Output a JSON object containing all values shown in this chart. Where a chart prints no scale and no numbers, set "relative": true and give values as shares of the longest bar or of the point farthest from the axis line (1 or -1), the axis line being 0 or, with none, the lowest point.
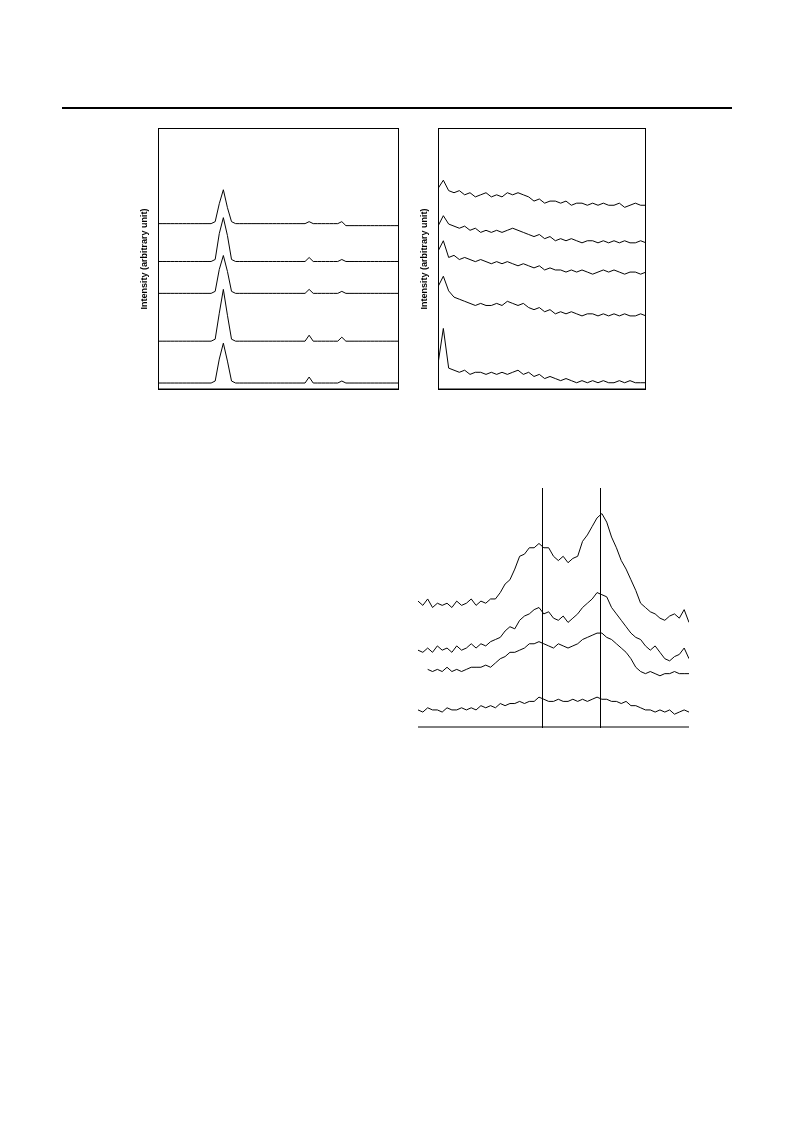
{
  "chart_data": [
    {
      "type": "line",
      "relative": true,
      "ylabel": "Intensity (arbitrary unit)",
      "categories": [
        null,
        null,
        null,
        null,
        null,
        null,
        null,
        null,
        null,
        null,
        null,
        null,
        null,
        null,
        null,
        null,
        null,
        null,
        null,
        null,
        null,
        null,
        null,
        null,
        null,
        null,
        null,
        null,
        null,
        null,
        null,
        null,
        null,
        null,
        null,
        null,
        null,
        null,
        null,
        null,
        null,
        null,
        null,
        null,
        null,
        null,
        null,
        null,
        null,
        null,
        null,
        null,
        null,
        null,
        null,
        null,
        null,
        null,
        null,
        null
      ],
      "series": [
        {
          "color": "#000000",
          "values": [
            0.83,
            0.83,
            0.83,
            0.83,
            0.83,
            0.83,
            0.83,
            0.83,
            0.83,
            0.83,
            0.83,
            0.83,
            0.83,
            0.83,
            0.84,
            0.93,
            1.0,
            0.91,
            0.84,
            0.83,
            0.83,
            0.83,
            0.83,
            0.83,
            0.83,
            0.83,
            0.83,
            0.83,
            0.83,
            0.83,
            0.83,
            0.83,
            0.83,
            0.83,
            0.83,
            0.83,
            0.83,
            0.84,
            0.83,
            0.83,
            0.83,
            0.83,
            0.83,
            0.83,
            0.83,
            0.84,
            0.82,
            0.82,
            0.82,
            0.82,
            0.82,
            0.82,
            0.82,
            0.82,
            0.82,
            0.82,
            0.82,
            0.82,
            0.82,
            0.82
          ]
        },
        {
          "color": "#000000",
          "values": [
            0.64,
            0.64,
            0.64,
            0.64,
            0.64,
            0.64,
            0.64,
            0.64,
            0.64,
            0.64,
            0.64,
            0.64,
            0.64,
            0.64,
            0.65,
            0.78,
            0.86,
            0.77,
            0.65,
            0.64,
            0.64,
            0.64,
            0.64,
            0.64,
            0.64,
            0.64,
            0.64,
            0.64,
            0.64,
            0.64,
            0.64,
            0.64,
            0.64,
            0.64,
            0.64,
            0.64,
            0.64,
            0.66,
            0.64,
            0.64,
            0.64,
            0.64,
            0.64,
            0.64,
            0.64,
            0.65,
            0.64,
            0.64,
            0.64,
            0.64,
            0.64,
            0.64,
            0.64,
            0.64,
            0.64,
            0.64,
            0.64,
            0.64,
            0.64,
            0.64
          ]
        },
        {
          "color": "#000000",
          "values": [
            0.48,
            0.48,
            0.48,
            0.48,
            0.48,
            0.48,
            0.48,
            0.48,
            0.48,
            0.48,
            0.48,
            0.48,
            0.48,
            0.48,
            0.49,
            0.6,
            0.67,
            0.59,
            0.49,
            0.48,
            0.48,
            0.48,
            0.48,
            0.48,
            0.48,
            0.48,
            0.48,
            0.48,
            0.48,
            0.48,
            0.48,
            0.48,
            0.48,
            0.48,
            0.48,
            0.48,
            0.48,
            0.5,
            0.48,
            0.48,
            0.48,
            0.48,
            0.48,
            0.48,
            0.48,
            0.49,
            0.48,
            0.48,
            0.48,
            0.48,
            0.48,
            0.48,
            0.48,
            0.48,
            0.48,
            0.48,
            0.48,
            0.48,
            0.48,
            0.48
          ]
        },
        {
          "color": "#000000",
          "values": [
            0.24,
            0.24,
            0.24,
            0.24,
            0.24,
            0.24,
            0.24,
            0.24,
            0.24,
            0.24,
            0.24,
            0.24,
            0.24,
            0.24,
            0.25,
            0.38,
            0.5,
            0.37,
            0.25,
            0.24,
            0.24,
            0.24,
            0.24,
            0.24,
            0.24,
            0.24,
            0.24,
            0.24,
            0.24,
            0.24,
            0.24,
            0.24,
            0.24,
            0.24,
            0.24,
            0.24,
            0.24,
            0.27,
            0.24,
            0.24,
            0.24,
            0.24,
            0.24,
            0.24,
            0.24,
            0.26,
            0.24,
            0.24,
            0.24,
            0.24,
            0.24,
            0.24,
            0.24,
            0.24,
            0.24,
            0.24,
            0.24,
            0.24,
            0.24,
            0.24
          ]
        },
        {
          "color": "#000000",
          "values": [
            0.03,
            0.03,
            0.03,
            0.03,
            0.03,
            0.03,
            0.03,
            0.03,
            0.03,
            0.03,
            0.03,
            0.03,
            0.03,
            0.03,
            0.04,
            0.15,
            0.23,
            0.14,
            0.04,
            0.03,
            0.03,
            0.03,
            0.03,
            0.03,
            0.03,
            0.03,
            0.03,
            0.03,
            0.03,
            0.03,
            0.03,
            0.03,
            0.03,
            0.03,
            0.03,
            0.03,
            0.03,
            0.06,
            0.03,
            0.03,
            0.03,
            0.03,
            0.03,
            0.03,
            0.03,
            0.04,
            0.03,
            0.03,
            0.03,
            0.03,
            0.03,
            0.03,
            0.03,
            0.03,
            0.03,
            0.03,
            0.03,
            0.03,
            0.03,
            0.03
          ]
        }
      ]
    },
    {
      "type": "line",
      "relative": true,
      "ylabel": "Intensity (arbitrary unit)",
      "categories": [
        null,
        null,
        null,
        null,
        null,
        null,
        null,
        null,
        null,
        null,
        null,
        null,
        null,
        null,
        null,
        null,
        null,
        null,
        null,
        null,
        null,
        null,
        null,
        null,
        null,
        null,
        null,
        null,
        null,
        null,
        null,
        null,
        null,
        null,
        null,
        null,
        null,
        null,
        null,
        null
      ],
      "series": [
        {
          "color": "#000000",
          "values": [
            0.96,
            1.0,
            0.95,
            0.94,
            0.95,
            0.93,
            0.94,
            0.92,
            0.93,
            0.94,
            0.92,
            0.93,
            0.92,
            0.94,
            0.93,
            0.94,
            0.93,
            0.92,
            0.9,
            0.91,
            0.89,
            0.9,
            0.9,
            0.89,
            0.9,
            0.88,
            0.89,
            0.89,
            0.88,
            0.89,
            0.88,
            0.89,
            0.88,
            0.88,
            0.89,
            0.87,
            0.88,
            0.89,
            0.88,
            0.88
          ]
        },
        {
          "color": "#000000",
          "values": [
            0.78,
            0.83,
            0.79,
            0.78,
            0.77,
            0.78,
            0.76,
            0.77,
            0.75,
            0.76,
            0.75,
            0.76,
            0.75,
            0.76,
            0.77,
            0.76,
            0.75,
            0.74,
            0.73,
            0.74,
            0.72,
            0.73,
            0.71,
            0.72,
            0.71,
            0.72,
            0.71,
            0.7,
            0.71,
            0.71,
            0.7,
            0.71,
            0.7,
            0.71,
            0.7,
            0.71,
            0.7,
            0.7,
            0.71,
            0.7
          ]
        },
        {
          "color": "#000000",
          "values": [
            0.66,
            0.71,
            0.63,
            0.64,
            0.62,
            0.63,
            0.62,
            0.61,
            0.62,
            0.61,
            0.6,
            0.61,
            0.6,
            0.61,
            0.6,
            0.59,
            0.6,
            0.59,
            0.58,
            0.59,
            0.57,
            0.58,
            0.57,
            0.57,
            0.56,
            0.57,
            0.56,
            0.57,
            0.56,
            0.55,
            0.56,
            0.57,
            0.56,
            0.57,
            0.56,
            0.55,
            0.56,
            0.56,
            0.55,
            0.56
          ]
        },
        {
          "color": "#000000",
          "values": [
            0.49,
            0.54,
            0.47,
            0.44,
            0.43,
            0.42,
            0.41,
            0.4,
            0.41,
            0.4,
            0.4,
            0.41,
            0.4,
            0.42,
            0.41,
            0.4,
            0.41,
            0.39,
            0.38,
            0.39,
            0.37,
            0.38,
            0.36,
            0.37,
            0.36,
            0.37,
            0.36,
            0.35,
            0.36,
            0.36,
            0.35,
            0.36,
            0.35,
            0.36,
            0.35,
            0.36,
            0.35,
            0.35,
            0.36,
            0.35
          ]
        },
        {
          "color": "#000000",
          "values": [
            0.12,
            0.29,
            0.1,
            0.09,
            0.08,
            0.09,
            0.07,
            0.08,
            0.08,
            0.07,
            0.08,
            0.07,
            0.08,
            0.07,
            0.08,
            0.09,
            0.07,
            0.08,
            0.06,
            0.07,
            0.05,
            0.06,
            0.05,
            0.04,
            0.05,
            0.04,
            0.03,
            0.04,
            0.03,
            0.04,
            0.03,
            0.04,
            0.03,
            0.03,
            0.04,
            0.03,
            0.04,
            0.03,
            0.03,
            0.03
          ]
        }
      ]
    },
    {
      "type": "line",
      "relative": true,
      "categories": [
        null,
        null,
        null,
        null,
        null,
        null,
        null,
        null,
        null,
        null,
        null,
        null,
        null,
        null,
        null,
        null,
        null,
        null,
        null,
        null,
        null,
        null,
        null,
        null,
        null,
        null,
        null,
        null,
        null,
        null,
        null,
        null,
        null,
        null,
        null,
        null,
        null,
        null,
        null,
        null,
        null,
        null,
        null,
        null,
        null,
        null,
        null,
        null,
        null,
        null,
        null,
        null,
        null,
        null,
        null,
        null,
        null
      ],
      "series": [
        {
          "color": "#000000",
          "values": [
            0.59,
            0.57,
            0.6,
            0.56,
            0.58,
            0.57,
            0.58,
            0.56,
            0.59,
            0.57,
            0.58,
            0.6,
            0.57,
            0.59,
            0.58,
            0.6,
            0.6,
            0.63,
            0.67,
            0.69,
            0.74,
            0.8,
            0.81,
            0.84,
            0.84,
            0.86,
            0.84,
            0.84,
            0.8,
            0.78,
            0.8,
            0.77,
            0.79,
            0.8,
            0.87,
            0.9,
            0.94,
            0.98,
            1.0,
            0.96,
            0.89,
            0.84,
            0.78,
            0.74,
            0.69,
            0.64,
            0.58,
            0.56,
            0.54,
            0.53,
            0.51,
            0.5,
            0.52,
            0.53,
            0.51,
            0.55,
            0.49
          ]
        },
        {
          "color": "#000000",
          "values": [
            0.36,
            0.35,
            0.37,
            0.35,
            0.38,
            0.36,
            0.37,
            0.35,
            0.38,
            0.36,
            0.37,
            0.39,
            0.37,
            0.39,
            0.38,
            0.4,
            0.41,
            0.42,
            0.45,
            0.47,
            0.46,
            0.5,
            0.52,
            0.53,
            0.55,
            0.56,
            0.53,
            0.54,
            0.51,
            0.5,
            0.52,
            0.49,
            0.51,
            0.53,
            0.56,
            0.58,
            0.6,
            0.63,
            0.62,
            0.61,
            0.56,
            0.53,
            0.5,
            0.47,
            0.44,
            0.42,
            0.41,
            0.38,
            0.36,
            0.38,
            0.35,
            0.32,
            0.31,
            0.33,
            0.34,
            0.37,
            0.32
          ]
        },
        {
          "color": "#000000",
          "values": [
            null,
            null,
            0.27,
            0.26,
            0.27,
            0.26,
            0.28,
            0.26,
            0.27,
            0.26,
            0.27,
            0.28,
            0.28,
            0.28,
            0.29,
            0.28,
            0.3,
            0.32,
            0.33,
            0.35,
            0.35,
            0.36,
            0.37,
            0.39,
            0.39,
            0.4,
            0.39,
            0.38,
            0.37,
            0.39,
            0.38,
            0.37,
            0.38,
            0.39,
            0.41,
            0.42,
            0.43,
            0.44,
            0.44,
            0.42,
            0.41,
            0.39,
            0.37,
            0.35,
            0.32,
            0.28,
            0.26,
            0.25,
            0.26,
            0.25,
            0.24,
            0.25,
            0.25,
            0.26,
            0.25,
            0.25,
            0.25
          ]
        },
        {
          "color": "#000000",
          "values": [
            0.08,
            0.07,
            0.09,
            0.08,
            0.08,
            0.07,
            0.09,
            0.08,
            0.08,
            0.09,
            0.08,
            0.09,
            0.08,
            0.1,
            0.09,
            0.1,
            0.09,
            0.11,
            0.1,
            0.11,
            0.11,
            0.12,
            0.11,
            0.12,
            0.12,
            0.14,
            0.13,
            0.12,
            0.12,
            0.13,
            0.12,
            0.12,
            0.13,
            0.12,
            0.13,
            0.12,
            0.13,
            0.14,
            0.13,
            0.13,
            0.12,
            0.12,
            0.11,
            0.12,
            0.1,
            0.1,
            0.09,
            0.08,
            0.08,
            0.07,
            0.08,
            0.07,
            0.08,
            0.06,
            0.07,
            0.08,
            0.07
          ]
        }
      ]
    }
  ]
}
